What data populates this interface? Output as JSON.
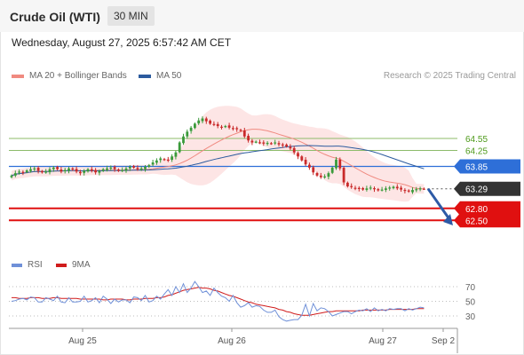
{
  "header": {
    "title": "Crude Oil (WTI)",
    "timeframe": "30 MIN"
  },
  "timestamp": "Wednesday, August 27, 2025 6:57:42 AM CET",
  "credit": "Research © 2025 Trading Central",
  "colors": {
    "ma20": "#f08a80",
    "bollinger": "#fcdcdc",
    "ma50": "#2c5b9e",
    "up": "#3a9a3a",
    "down": "#c92a2a",
    "resistance": "#8dbb6a",
    "pivot": "#2e6fd8",
    "support": "#e01010",
    "last": "#333333",
    "rsi": "#6f90d8",
    "rsi_ma": "#d01c1c"
  },
  "legend": {
    "ma20": "MA 20 + Bollinger Bands",
    "ma50": "MA 50",
    "rsi": "RSI",
    "rsi_ma": "9MA"
  },
  "chart_data": [
    {
      "type": "candlestick",
      "x_tick_labels": [
        "Aug 25",
        "Aug 26",
        "Aug 27",
        "Sep 2"
      ],
      "ylim": [
        62.4,
        65.3
      ],
      "close": [
        63.62,
        63.68,
        63.72,
        63.7,
        63.75,
        63.78,
        63.8,
        63.74,
        63.7,
        63.72,
        63.78,
        63.82,
        63.78,
        63.72,
        63.76,
        63.8,
        63.77,
        63.72,
        63.68,
        63.74,
        63.78,
        63.74,
        63.7,
        63.73,
        63.78,
        63.8,
        63.82,
        63.78,
        63.74,
        63.76,
        63.8,
        63.84,
        63.82,
        63.78,
        63.8,
        63.84,
        63.88,
        63.95,
        64.0,
        64.05,
        64.02,
        64.0,
        64.1,
        64.2,
        64.45,
        64.6,
        64.72,
        64.82,
        64.92,
        65.0,
        65.05,
        64.98,
        64.92,
        64.9,
        64.86,
        64.84,
        64.86,
        64.82,
        64.8,
        64.78,
        64.75,
        64.6,
        64.5,
        64.45,
        64.47,
        64.45,
        64.42,
        64.44,
        64.42,
        64.45,
        64.4,
        64.38,
        64.35,
        64.3,
        64.2,
        64.1,
        64.0,
        63.9,
        63.82,
        63.7,
        63.62,
        63.58,
        63.6,
        63.68,
        63.82,
        64.02,
        63.8,
        63.45,
        63.35,
        63.33,
        63.31,
        63.29,
        63.27,
        63.3,
        63.32,
        63.28,
        63.25,
        63.27,
        63.3,
        63.32,
        63.34,
        63.3,
        63.27,
        63.24,
        63.22,
        63.26,
        63.28,
        63.3,
        63.29
      ],
      "resistance": [
        64.55,
        64.25
      ],
      "pivot": 63.85,
      "last_price": 63.29,
      "support": [
        62.8,
        62.5
      ],
      "price_labels": [
        "64.55",
        "64.25",
        "63.85",
        "63.29",
        "62.80",
        "62.50"
      ],
      "forecast": {
        "from": 63.29,
        "to": 62.55,
        "direction": "down"
      }
    },
    {
      "type": "line",
      "name": "RSI",
      "y_tick_labels": [
        "70",
        "50",
        "30"
      ],
      "ylim": [
        20,
        80
      ],
      "rsi": [
        50,
        51,
        53,
        54,
        52,
        56,
        55,
        49,
        49,
        55,
        53,
        51,
        57,
        49,
        48,
        55,
        49,
        49,
        50,
        57,
        49,
        51,
        55,
        48,
        57,
        53,
        47,
        53,
        49,
        52,
        52,
        48,
        56,
        55,
        51,
        58,
        49,
        51,
        57,
        53,
        60,
        66,
        58,
        70,
        62,
        74,
        62,
        68,
        77,
        70,
        62,
        64,
        58,
        68,
        62,
        57,
        55,
        50,
        58,
        48,
        42,
        44,
        48,
        42,
        44,
        43,
        38,
        35,
        35,
        38,
        29,
        25,
        23,
        24,
        25,
        25,
        31,
        46,
        30,
        47,
        37,
        41,
        40,
        36,
        30,
        32,
        34,
        36,
        36,
        33,
        36,
        38,
        37,
        40,
        36,
        41,
        37,
        39,
        37,
        40,
        39,
        40,
        40,
        37,
        40,
        38,
        40,
        42,
        41
      ],
      "rsi_ma": [
        55,
        55,
        54,
        54,
        54,
        55,
        55,
        55,
        54,
        54,
        54,
        55,
        55,
        54,
        54,
        54,
        54,
        54,
        53,
        53,
        53,
        53,
        53,
        53,
        52,
        52,
        53,
        53,
        53,
        53,
        52,
        52,
        53,
        53,
        53,
        54,
        54,
        54,
        55,
        55,
        56,
        58,
        59,
        61,
        63,
        65,
        66,
        67,
        68,
        69,
        68,
        68,
        67,
        65,
        64,
        62,
        60,
        58,
        57,
        55,
        53,
        51,
        49,
        48,
        46,
        45,
        44,
        43,
        42,
        41,
        39,
        38,
        36,
        35,
        33,
        32,
        31,
        31,
        31,
        32,
        33,
        34,
        35,
        36,
        36,
        37,
        37,
        37,
        37,
        37,
        37,
        37,
        38,
        38,
        38,
        38,
        38,
        38,
        38,
        39,
        39,
        39,
        39,
        39,
        39,
        39,
        40,
        40,
        40
      ]
    }
  ]
}
